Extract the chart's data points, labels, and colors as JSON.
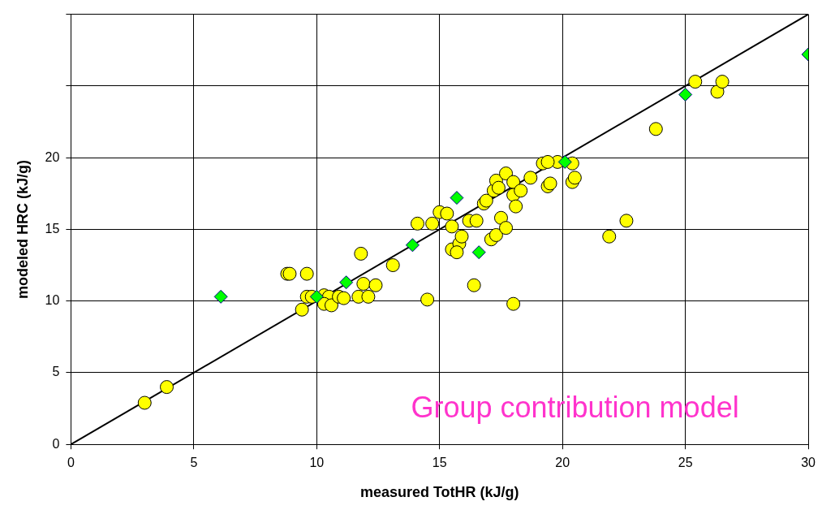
{
  "chart_data": {
    "type": "scatter",
    "xlabel": "measured TotHR (kJ/g)",
    "ylabel": "modeled HRC (kJ/g)",
    "xlim": [
      0,
      30
    ],
    "xticks": [
      0,
      5,
      10,
      15,
      20,
      25,
      30
    ],
    "ylim": [
      0,
      30
    ],
    "yticks": [
      0,
      5,
      10,
      15,
      20,
      {
        "value": 25,
        "label": null
      },
      {
        "value": 30,
        "label": null
      }
    ],
    "grid": true,
    "annotations": [
      "Group contribution model"
    ],
    "series": [
      {
        "type": "line",
        "color": "#000000",
        "marker": "none",
        "x": [
          0,
          30
        ],
        "values": [
          0,
          30
        ]
      },
      {
        "color": "#ffff00",
        "marker": "circle",
        "x": [
          3.0,
          3.9,
          8.8,
          8.9,
          9.6,
          9.4,
          9.6,
          9.8,
          10.3,
          10.5,
          10.3,
          10.6,
          10.9,
          11.1,
          11.7,
          11.8,
          11.9,
          12.1,
          12.4,
          13.1,
          14.5,
          14.1,
          14.7,
          15.0,
          15.3,
          15.5,
          15.5,
          15.8,
          15.9,
          15.7,
          16.4,
          16.2,
          16.5,
          16.8,
          16.9,
          17.1,
          17.2,
          17.3,
          17.4,
          17.5,
          17.3,
          17.7,
          17.7,
          18.0,
          18.0,
          18.0,
          18.1,
          18.3,
          18.7,
          19.2,
          19.4,
          19.5,
          19.8,
          20.4,
          20.4,
          20.5,
          19.4,
          21.9,
          22.6,
          23.8,
          25.4,
          26.3,
          26.5
        ],
        "values": [
          2.9,
          4.0,
          11.9,
          11.9,
          11.9,
          9.4,
          10.3,
          10.3,
          10.4,
          10.3,
          9.8,
          9.7,
          10.3,
          10.2,
          10.3,
          13.3,
          11.2,
          10.3,
          11.1,
          12.5,
          10.1,
          15.4,
          15.4,
          16.2,
          16.1,
          15.2,
          13.6,
          14.0,
          14.5,
          13.4,
          11.1,
          15.6,
          15.6,
          16.8,
          17.0,
          14.3,
          17.7,
          18.4,
          17.9,
          15.8,
          14.6,
          18.9,
          15.1,
          18.3,
          17.4,
          9.8,
          16.6,
          17.7,
          18.6,
          19.6,
          18.0,
          18.2,
          19.7,
          19.6,
          18.3,
          18.6,
          19.7,
          14.5,
          15.6,
          22.0,
          25.3,
          24.6,
          25.3
        ]
      },
      {
        "color": "#00ff00",
        "marker": "diamond",
        "x": [
          6.1,
          10.0,
          11.2,
          13.9,
          15.7,
          16.6,
          20.1,
          25.0,
          30.0
        ],
        "values": [
          10.3,
          10.3,
          11.3,
          13.9,
          17.2,
          13.4,
          19.7,
          24.4,
          27.2
        ]
      }
    ]
  }
}
